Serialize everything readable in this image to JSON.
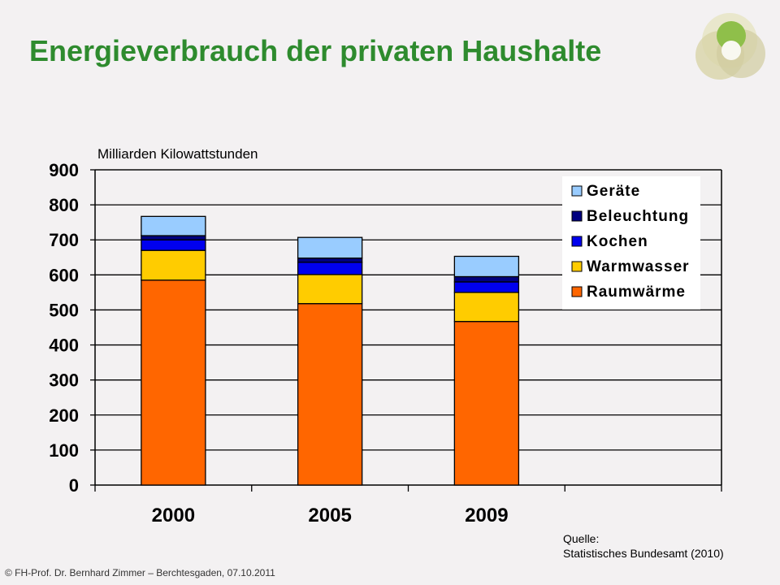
{
  "header": {
    "title": "Energieverbrauch der privaten Haushalte"
  },
  "footer": {
    "credit": "© FH-Prof. Dr. Bernhard Zimmer  –  Berchtesgaden, 07.10.2011",
    "source_line1": "Quelle:",
    "source_line2": "Statistisches Bundesamt (2010)"
  },
  "colors": {
    "title": "#2e8b2e",
    "background": "#f3f1f2"
  },
  "chart_data": {
    "type": "bar",
    "stacked": true,
    "ylabel": "Milliarden Kilowattstunden",
    "ylim": [
      0,
      900
    ],
    "yticks": [
      0,
      100,
      200,
      300,
      400,
      500,
      600,
      700,
      800,
      900
    ],
    "grid": true,
    "legend_position": "top-right",
    "categories": [
      "2000",
      "2005",
      "2009"
    ],
    "series": [
      {
        "name": "Raumwärme",
        "color": "#ff6600",
        "values": [
          585,
          518,
          467
        ]
      },
      {
        "name": "Warmwasser",
        "color": "#ffcc00",
        "values": [
          85,
          83,
          83
        ]
      },
      {
        "name": "Kochen",
        "color": "#0000ee",
        "values": [
          30,
          35,
          30
        ]
      },
      {
        "name": "Beleuchtung",
        "color": "#000080",
        "values": [
          12,
          12,
          15
        ]
      },
      {
        "name": "Geräte",
        "color": "#99ccff",
        "values": [
          55,
          59,
          58
        ]
      }
    ]
  }
}
